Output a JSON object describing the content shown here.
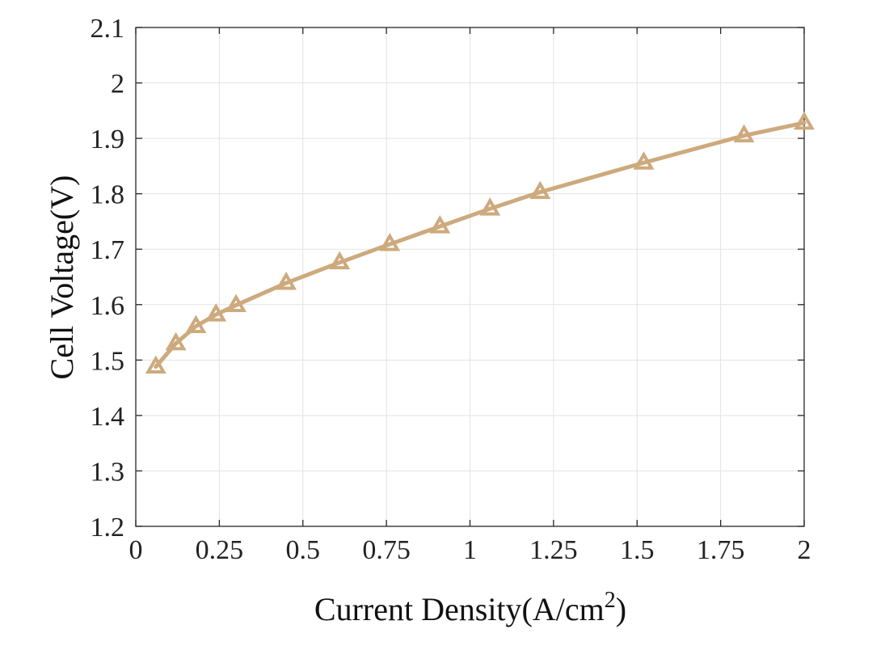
{
  "chart_data": {
    "type": "line",
    "title": "",
    "xlabel": "Current Density(A/cm",
    "xlabel_superscript": "2",
    "xlabel_close": ")",
    "ylabel": "Cell Voltage(V)",
    "xlim": [
      0,
      2
    ],
    "ylim": [
      1.2,
      2.1
    ],
    "xticks": [
      0,
      0.25,
      0.5,
      0.75,
      1,
      1.25,
      1.5,
      1.75,
      2
    ],
    "xtick_labels": [
      "0",
      "0.25",
      "0.5",
      "0.75",
      "1",
      "1.25",
      "1.5",
      "1.75",
      "2"
    ],
    "yticks": [
      1.2,
      1.3,
      1.4,
      1.5,
      1.6,
      1.7,
      1.8,
      1.9,
      2.0,
      2.1
    ],
    "ytick_labels": [
      "1.2",
      "1.3",
      "1.4",
      "1.5",
      "1.6",
      "1.7",
      "1.8",
      "1.9",
      "2",
      "2.1"
    ],
    "grid": true,
    "series": [
      {
        "color": "#cdaa7d",
        "marker": "triangle-open",
        "x": [
          0.06,
          0.12,
          0.18,
          0.24,
          0.3,
          0.45,
          0.61,
          0.76,
          0.91,
          1.06,
          1.21,
          1.52,
          1.82,
          2.0
        ],
        "y": [
          1.488,
          1.53,
          1.561,
          1.582,
          1.599,
          1.639,
          1.676,
          1.709,
          1.741,
          1.773,
          1.803,
          1.856,
          1.905,
          1.928
        ]
      }
    ]
  }
}
